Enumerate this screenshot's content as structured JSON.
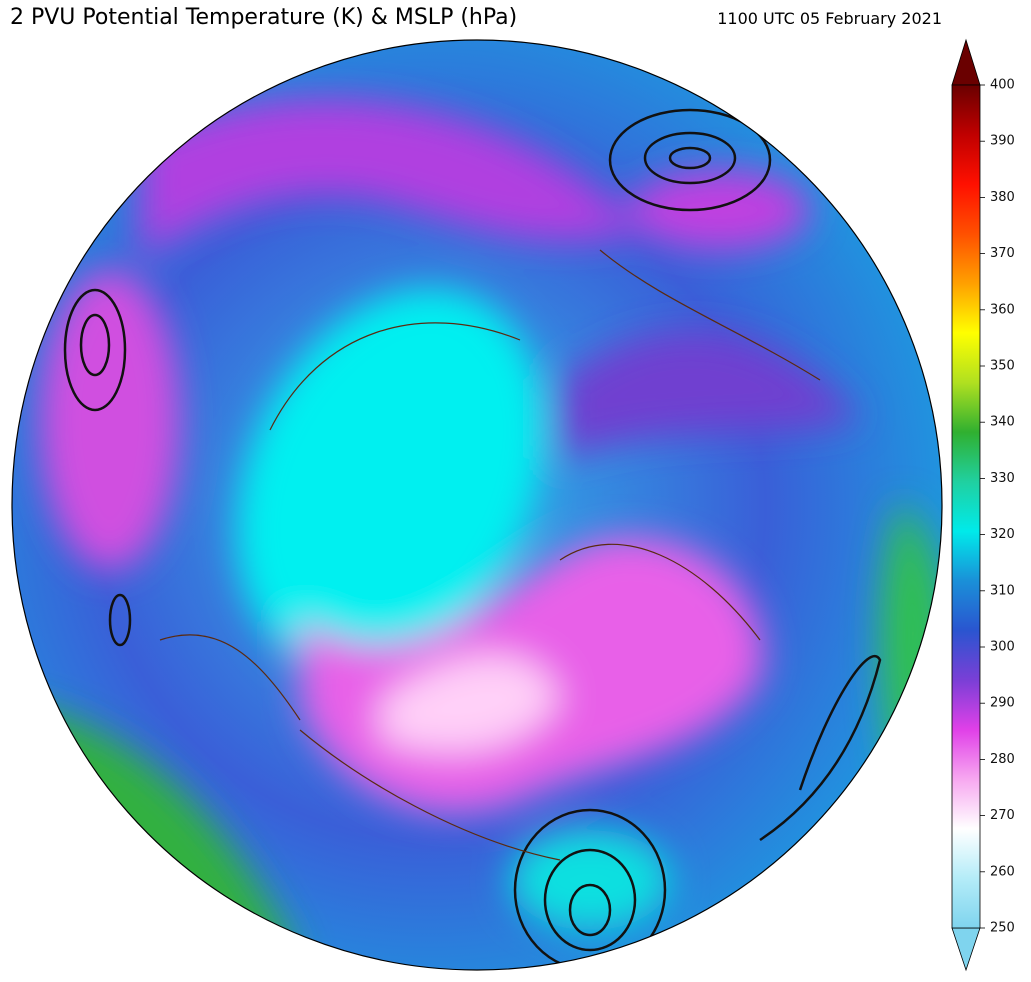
{
  "title": "2 PVU Potential Temperature (K) & MSLP (hPa)",
  "timestamp": "1100 UTC 05 February 2021",
  "colorbar": {
    "lim": [
      250,
      400
    ],
    "ticks": [
      250,
      260,
      270,
      280,
      290,
      300,
      310,
      320,
      330,
      340,
      350,
      360,
      370,
      380,
      390,
      400
    ],
    "colors": [
      "#7fd4ee",
      "#b4ecf8",
      "#ffffff",
      "#f7a8f0",
      "#e040e8",
      "#7a3fd6",
      "#2a55d0",
      "#1a90d8",
      "#00eaea",
      "#20d0a0",
      "#30b030",
      "#b0e020",
      "#ffff00",
      "#ffa000",
      "#ff5000",
      "#ff1000",
      "#c00000",
      "#6a0000"
    ]
  }
}
